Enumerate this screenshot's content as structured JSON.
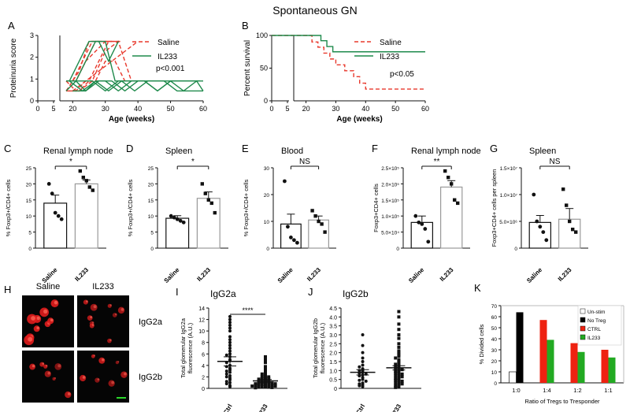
{
  "figure_title": "Spontaneous GN",
  "colors": {
    "saline": "#e8382c",
    "il233": "#1f8a4c",
    "black": "#111111",
    "ctrl_bar": "#ee2211",
    "il233_bar": "#22aa22",
    "notreg_bar": "#000000",
    "unstim_bar": "#ffffff"
  },
  "chart_data": [
    {
      "panel": "A",
      "type": "line",
      "ylabel": "Proteinuria score",
      "xlabel": "Age (weeks)",
      "x_ticks": [
        "0",
        "5",
        "20",
        "30",
        "40",
        "50",
        "60"
      ],
      "y_ticks": [
        "0",
        "1",
        "2",
        "3"
      ],
      "ylim": [
        0,
        3.3
      ],
      "legend": [
        "Saline",
        "IL233"
      ],
      "annotation": "p<0.001",
      "series": [
        {
          "name": "Saline",
          "x": [
            18,
            21,
            24,
            27,
            30,
            33
          ],
          "y": [
            0.5,
            1,
            2,
            3,
            3,
            3
          ]
        },
        {
          "name": "Saline",
          "x": [
            18,
            21,
            24,
            27,
            30,
            34
          ],
          "y": [
            1,
            1,
            2,
            2.5,
            3,
            3
          ]
        },
        {
          "name": "Saline",
          "x": [
            18,
            22,
            25,
            28,
            31
          ],
          "y": [
            0.5,
            1.5,
            3,
            3,
            3
          ]
        },
        {
          "name": "Saline",
          "x": [
            19,
            22,
            25,
            28,
            31,
            35
          ],
          "y": [
            0.5,
            0.5,
            1,
            2,
            3,
            3
          ]
        },
        {
          "name": "Saline",
          "x": [
            20,
            23,
            26,
            29,
            32
          ],
          "y": [
            1,
            2,
            3,
            3,
            3
          ]
        },
        {
          "name": "Saline",
          "x": [
            20,
            24,
            28,
            32,
            36,
            40
          ],
          "y": [
            0.5,
            1,
            1.5,
            2,
            2.5,
            3
          ]
        },
        {
          "name": "Saline",
          "x": [
            18,
            21,
            24,
            27,
            30,
            33,
            36
          ],
          "y": [
            1,
            0.5,
            1,
            1,
            2,
            2,
            1
          ]
        },
        {
          "name": "Saline",
          "x": [
            18,
            22,
            26,
            30,
            34,
            38,
            42
          ],
          "y": [
            0.5,
            0.5,
            1,
            2.5,
            3,
            1,
            1
          ]
        },
        {
          "name": "IL233",
          "x": [
            18,
            22,
            26,
            30,
            34,
            38,
            42,
            46,
            50,
            54,
            58,
            60
          ],
          "y": [
            1,
            1,
            1,
            0.5,
            1,
            1,
            1,
            0.5,
            1,
            1,
            1,
            1
          ]
        },
        {
          "name": "IL233",
          "x": [
            18,
            21,
            24,
            27,
            30,
            34,
            38,
            42,
            46,
            50,
            54,
            58,
            60
          ],
          "y": [
            0.5,
            1,
            0.5,
            1,
            1,
            0.5,
            1,
            1,
            0.5,
            1,
            0.5,
            1,
            0.5
          ]
        },
        {
          "name": "IL233",
          "x": [
            19,
            22,
            25,
            28,
            31,
            34
          ],
          "y": [
            1,
            2,
            3,
            3,
            2,
            3
          ]
        },
        {
          "name": "IL233",
          "x": [
            20,
            24,
            28,
            32,
            36,
            40,
            44,
            48,
            52,
            56,
            60
          ],
          "y": [
            0.5,
            0.5,
            1,
            1,
            0.5,
            1,
            1,
            1,
            0.5,
            0.5,
            0.5
          ]
        },
        {
          "name": "IL233",
          "x": [
            18,
            21,
            24,
            27,
            30,
            33,
            36,
            40
          ],
          "y": [
            1,
            1,
            2,
            3,
            3,
            1,
            1,
            1
          ]
        },
        {
          "name": "IL233",
          "x": [
            19,
            23,
            27,
            31,
            35,
            39,
            43,
            47,
            51,
            55,
            59
          ],
          "y": [
            1,
            0.5,
            1,
            0.5,
            1,
            0.5,
            1,
            1,
            1,
            1,
            1
          ]
        }
      ]
    },
    {
      "panel": "B",
      "type": "line",
      "ylabel": "Percent survival",
      "xlabel": "Age (weeks)",
      "x_ticks": [
        "0",
        "5",
        "20",
        "30",
        "40",
        "50",
        "60"
      ],
      "y_ticks": [
        "0",
        "50",
        "100"
      ],
      "ylim": [
        0,
        100
      ],
      "legend": [
        "Saline",
        "IL233"
      ],
      "annotation": "p<0.05",
      "series": [
        {
          "name": "Saline",
          "x": [
            0,
            22,
            22,
            24,
            24,
            26,
            26,
            28,
            28,
            30,
            30,
            33,
            33,
            36,
            36,
            38,
            38,
            40,
            40,
            41,
            41,
            60
          ],
          "y": [
            100,
            100,
            90,
            90,
            82,
            82,
            73,
            73,
            64,
            64,
            55,
            55,
            46,
            46,
            37,
            37,
            27,
            27,
            18,
            18,
            18,
            18
          ]
        },
        {
          "name": "IL233",
          "x": [
            0,
            25,
            25,
            27,
            27,
            29,
            29,
            60
          ],
          "y": [
            100,
            100,
            92,
            92,
            83,
            83,
            75,
            75
          ]
        }
      ]
    },
    {
      "panel": "C",
      "type": "bar",
      "title": "Renal lymph node",
      "ylabel": "% Foxp3+/CD4+ cells",
      "categories": [
        "Saline",
        "IL233"
      ],
      "values": [
        14,
        20
      ],
      "sem": [
        2.5,
        1.2
      ],
      "points": [
        [
          20,
          17,
          11,
          10,
          9
        ],
        [
          24,
          22,
          21,
          19,
          18
        ]
      ],
      "y_ticks": [
        "0",
        "5",
        "10",
        "15",
        "20",
        "25"
      ],
      "ylim": [
        0,
        25
      ],
      "significance": "*"
    },
    {
      "panel": "D",
      "type": "bar",
      "title": "Spleen",
      "ylabel": "% Foxp3+/CD4+ cells",
      "categories": [
        "Saline",
        "IL233"
      ],
      "values": [
        9.3,
        15.5
      ],
      "sem": [
        0.8,
        2
      ],
      "points": [
        [
          10,
          9.5,
          9,
          8.5,
          8
        ],
        [
          20,
          17,
          15,
          14,
          11
        ]
      ],
      "y_ticks": [
        "0",
        "5",
        "10",
        "15",
        "20",
        "25"
      ],
      "ylim": [
        0,
        25
      ],
      "significance": "*"
    },
    {
      "panel": "E",
      "type": "bar",
      "title": "Blood",
      "ylabel": "% Foxp3+/CD4+ cells",
      "categories": [
        "Saline",
        "IL233"
      ],
      "values": [
        9,
        10.5
      ],
      "sem": [
        3.7,
        1.5
      ],
      "points": [
        [
          25,
          8,
          4,
          3,
          2
        ],
        [
          14,
          12,
          10,
          9,
          6
        ]
      ],
      "y_ticks": [
        "0",
        "10",
        "20",
        "30"
      ],
      "ylim": [
        0,
        30
      ],
      "significance": "NS"
    },
    {
      "panel": "F",
      "type": "bar",
      "title": "Renal lymph node",
      "ylabel": "Foxp3+CD4+ cells",
      "categories": [
        "Saline",
        "IL233"
      ],
      "values": [
        80000,
        190000
      ],
      "sem": [
        20000,
        20000
      ],
      "points": [
        [
          100000,
          80000,
          75000,
          60000,
          20000
        ],
        [
          240000,
          220000,
          200000,
          150000,
          140000
        ]
      ],
      "y_ticks": [
        "0",
        "5.0×10⁴",
        "1.0×10⁵",
        "1.5×10⁵",
        "2.0×10⁵",
        "2.5×10⁵"
      ],
      "ylim": [
        0,
        250000
      ],
      "significance": "**"
    },
    {
      "panel": "G",
      "type": "bar",
      "title": "Spleen",
      "ylabel": "Foxp3+CD4+ cells per spleen",
      "categories": [
        "Saline",
        "IL233"
      ],
      "values": [
        4800000,
        5400000
      ],
      "sem": [
        1300000,
        2000000
      ],
      "points": [
        [
          10000000,
          5000000,
          4000000,
          3000000,
          1500000
        ],
        [
          11000000,
          8000000,
          5000000,
          3500000,
          3000000
        ]
      ],
      "y_ticks": [
        "0",
        "5.0×10⁶",
        "1.0×10⁷",
        "1.5×10⁷"
      ],
      "ylim": [
        0,
        15000000
      ],
      "significance": "NS"
    },
    {
      "panel": "I",
      "type": "scatter",
      "title": "IgG2a",
      "ylabel": "Total glomerular IgG2a fluorescence (A.U.)",
      "categories": [
        "Ctrl",
        "IL233"
      ],
      "means": [
        4.7,
        1.3
      ],
      "sem": [
        0.8,
        0.25
      ],
      "y_ticks": [
        "0",
        "2",
        "4",
        "6",
        "8",
        "10",
        "12",
        "14"
      ],
      "ylim": [
        0,
        14
      ],
      "significance": "****",
      "points": [
        [
          12.5,
          12,
          11.5,
          11,
          10.5,
          10,
          9,
          8.5,
          8,
          7.5,
          7,
          6.5,
          6,
          5.8,
          5.5,
          5,
          4.8,
          4.5,
          4,
          3.8,
          3.5,
          3.2,
          3,
          2.8,
          2.5,
          2.2,
          2,
          1.8,
          1.5,
          1.2,
          1,
          0.8,
          0.5,
          0.3
        ],
        [
          5.5,
          5,
          4.5,
          3.8,
          3.5,
          3,
          2.8,
          2.5,
          2.3,
          2.1,
          2,
          1.9,
          1.8,
          1.7,
          1.6,
          1.5,
          1.4,
          1.3,
          1.2,
          1.1,
          1,
          1,
          0.9,
          0.9,
          0.8,
          0.8,
          0.7,
          0.7,
          0.6,
          0.6,
          0.5,
          0.5,
          0.4,
          0.4,
          0.3,
          0.3,
          0.2,
          0.2,
          0.15,
          0.1
        ]
      ]
    },
    {
      "panel": "J",
      "type": "scatter",
      "title": "IgG2b",
      "ylabel": "Total glomerular IgG2b fluorescence (A.U.)",
      "categories": [
        "Ctrl",
        "IL233"
      ],
      "means": [
        0.9,
        1.15
      ],
      "sem": [
        0.15,
        0.12
      ],
      "y_ticks": [
        "0",
        "0.5",
        "1.0",
        "1.5",
        "2.0",
        "2.5",
        "3.0",
        "3.5",
        "4.0",
        "4.5"
      ],
      "ylim": [
        0,
        4.5
      ],
      "significance": "",
      "points": [
        [
          3,
          2.4,
          2,
          1.7,
          1.5,
          1.3,
          1.2,
          1.1,
          1,
          1,
          0.9,
          0.85,
          0.8,
          0.75,
          0.7,
          0.6,
          0.5,
          0.45,
          0.4,
          0.3,
          0.25,
          0.2,
          0.15,
          0.1
        ],
        [
          4.3,
          4,
          3.6,
          3.3,
          3,
          2.8,
          2.5,
          2.3,
          2.1,
          2,
          1.9,
          1.8,
          1.7,
          1.6,
          1.5,
          1.4,
          1.35,
          1.3,
          1.2,
          1.15,
          1.1,
          1.05,
          1,
          0.95,
          0.9,
          0.85,
          0.8,
          0.75,
          0.7,
          0.65,
          0.6,
          0.55,
          0.5,
          0.45,
          0.4,
          0.35,
          0.3,
          0.25,
          0.2,
          0.15,
          0.1,
          0.05
        ]
      ]
    },
    {
      "panel": "K",
      "type": "bar",
      "ylabel": "% Divided cells",
      "xlabel": "Ratio of Tregs to Tresponder",
      "categories": [
        "1:0",
        "1:4",
        "1:2",
        "1:1"
      ],
      "legend": [
        "Un-stim",
        "No Treg",
        "CTRL",
        "IL233"
      ],
      "y_ticks": [
        "0",
        "10",
        "20",
        "30",
        "40",
        "50",
        "60",
        "70"
      ],
      "ylim": [
        0,
        70
      ],
      "series": [
        {
          "name": "Un-stim",
          "values": [
            10,
            null,
            null,
            null
          ]
        },
        {
          "name": "No Treg",
          "values": [
            64,
            null,
            null,
            null
          ]
        },
        {
          "name": "CTRL",
          "values": [
            null,
            57,
            36,
            30
          ]
        },
        {
          "name": "IL233",
          "values": [
            null,
            39,
            28,
            23
          ]
        }
      ]
    }
  ],
  "panel_H": {
    "label": "H",
    "col_titles": [
      "Saline",
      "IL233"
    ],
    "row_titles": [
      "IgG2a",
      "IgG2b"
    ]
  }
}
